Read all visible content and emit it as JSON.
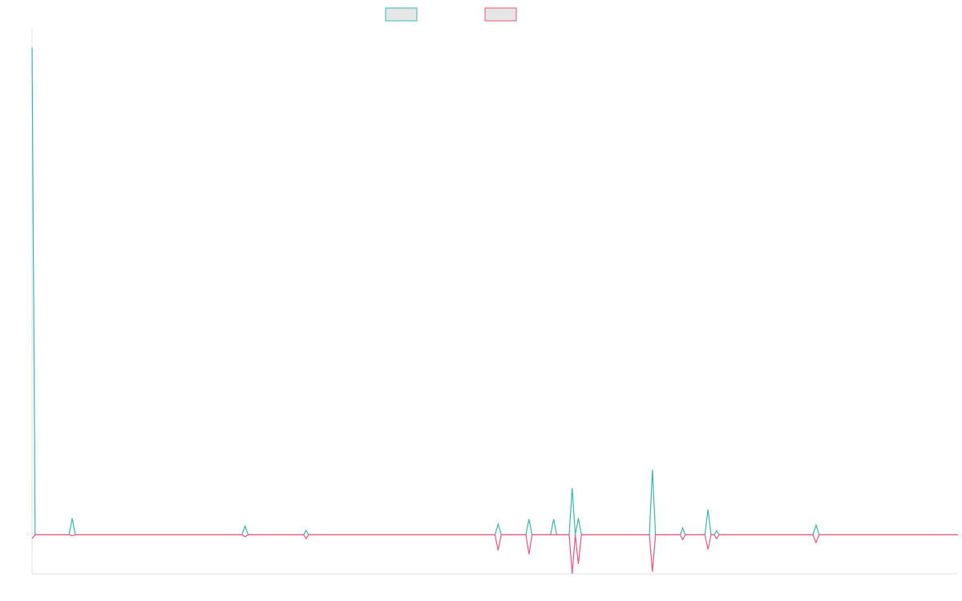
{
  "chart_data": {
    "type": "line",
    "title": "",
    "xlabel": "",
    "ylabel": "",
    "grid": false,
    "legend_position": "top-center",
    "ylim": [
      -4,
      52
    ],
    "xlim": [
      0,
      300
    ],
    "series": [
      {
        "color": "#36b9b0",
        "fill": "#e6e6e6",
        "points": [
          [
            0,
            50
          ],
          [
            1,
            0
          ],
          [
            12,
            0
          ],
          [
            13,
            1.7
          ],
          [
            14,
            0
          ],
          [
            22,
            0
          ],
          [
            26,
            0
          ],
          [
            68,
            0
          ],
          [
            69,
            0.9
          ],
          [
            70,
            0
          ],
          [
            88,
            0
          ],
          [
            88.8,
            0.45
          ],
          [
            89.6,
            0
          ],
          [
            150,
            0
          ],
          [
            151,
            1.1
          ],
          [
            152,
            0
          ],
          [
            160,
            0
          ],
          [
            161,
            1.6
          ],
          [
            162,
            0
          ],
          [
            168,
            0
          ],
          [
            169,
            1.6
          ],
          [
            170,
            0
          ],
          [
            174,
            0
          ],
          [
            175,
            4.8
          ],
          [
            176,
            0
          ],
          [
            177,
            1.7
          ],
          [
            178,
            0
          ],
          [
            200,
            0
          ],
          [
            201,
            6.7
          ],
          [
            202,
            0
          ],
          [
            210,
            0
          ],
          [
            210.8,
            0.7
          ],
          [
            211.6,
            0
          ],
          [
            218,
            0
          ],
          [
            219,
            2.6
          ],
          [
            220,
            0
          ],
          [
            221,
            0
          ],
          [
            221.8,
            0.4
          ],
          [
            222.6,
            0
          ],
          [
            253,
            0
          ],
          [
            254,
            1
          ],
          [
            255,
            0
          ],
          [
            300,
            0
          ]
        ]
      },
      {
        "color": "#f0547b",
        "fill": "#e6e6e6",
        "points": [
          [
            0,
            -0.4
          ],
          [
            1,
            0
          ],
          [
            12,
            0
          ],
          [
            13,
            -0.1
          ],
          [
            14,
            0
          ],
          [
            68,
            0
          ],
          [
            69,
            -0.2
          ],
          [
            70,
            0
          ],
          [
            88,
            0
          ],
          [
            88.8,
            -0.4
          ],
          [
            89.6,
            0
          ],
          [
            150,
            0
          ],
          [
            151,
            -1.6
          ],
          [
            152,
            0
          ],
          [
            160,
            0
          ],
          [
            161,
            -2
          ],
          [
            162,
            0
          ],
          [
            174,
            0
          ],
          [
            175,
            -4
          ],
          [
            176,
            0
          ],
          [
            177,
            -3
          ],
          [
            178,
            0
          ],
          [
            200,
            0
          ],
          [
            201,
            -3.8
          ],
          [
            202,
            0
          ],
          [
            210,
            0
          ],
          [
            210.8,
            -0.5
          ],
          [
            211.6,
            0
          ],
          [
            218,
            0
          ],
          [
            219,
            -1.5
          ],
          [
            220,
            0
          ],
          [
            221,
            0
          ],
          [
            221.8,
            -0.4
          ],
          [
            222.6,
            0
          ],
          [
            253,
            0
          ],
          [
            254,
            -0.8
          ],
          [
            255,
            0
          ],
          [
            300,
            0
          ]
        ]
      }
    ]
  }
}
